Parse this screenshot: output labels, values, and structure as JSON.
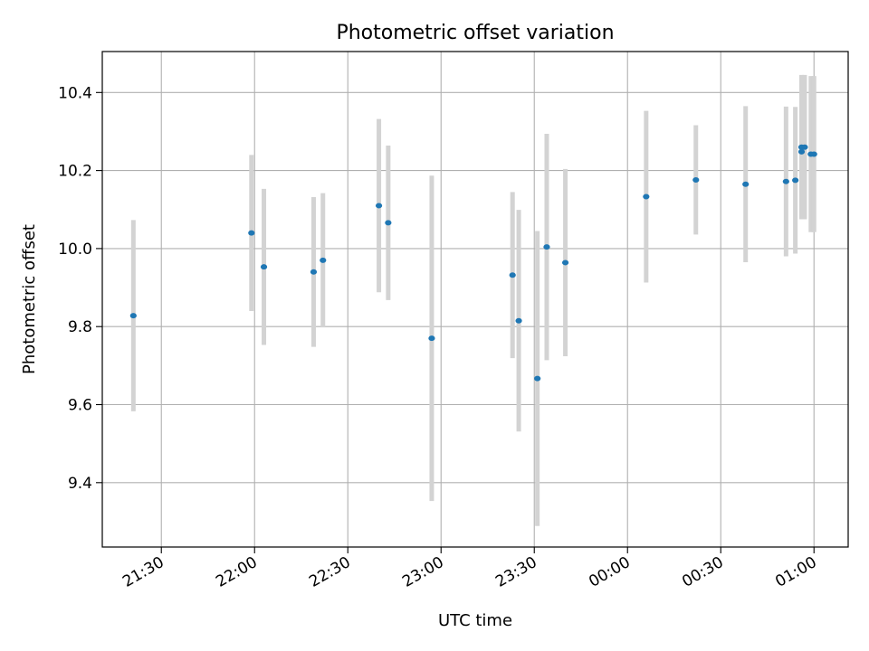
{
  "chart_data": {
    "type": "scatter",
    "title": "Photometric offset variation",
    "xlabel": "UTC time",
    "ylabel": "Photometric offset",
    "x_ticks": [
      "21:30",
      "22:00",
      "22:30",
      "23:00",
      "23:30",
      "00:00",
      "00:30",
      "01:00"
    ],
    "y_ticks": [
      "9.4",
      "9.6",
      "9.8",
      "10.0",
      "10.2",
      "10.4"
    ],
    "xlim": [
      "21:11",
      "01:11"
    ],
    "ylim": [
      9.235,
      10.505
    ],
    "grid": true,
    "marker_color": "#1f77b4",
    "errorbar_color": "#d3d3d3",
    "points": [
      {
        "time": "21:21",
        "y": 9.828,
        "err": 0.245
      },
      {
        "time": "21:59",
        "y": 10.04,
        "err": 0.2
      },
      {
        "time": "22:03",
        "y": 9.953,
        "err": 0.2
      },
      {
        "time": "22:19",
        "y": 9.94,
        "err": 0.192
      },
      {
        "time": "22:22",
        "y": 9.97,
        "err": 0.172
      },
      {
        "time": "22:40",
        "y": 10.11,
        "err": 0.222
      },
      {
        "time": "22:43",
        "y": 10.066,
        "err": 0.198
      },
      {
        "time": "22:57",
        "y": 9.77,
        "err": 0.417
      },
      {
        "time": "23:23",
        "y": 9.932,
        "err": 0.213
      },
      {
        "time": "23:25",
        "y": 9.815,
        "err": 0.284
      },
      {
        "time": "23:31",
        "y": 9.667,
        "err": 0.378
      },
      {
        "time": "23:34",
        "y": 10.004,
        "err": 0.29
      },
      {
        "time": "23:40",
        "y": 9.964,
        "err": 0.24
      },
      {
        "time": "00:06",
        "y": 10.133,
        "err": 0.22
      },
      {
        "time": "00:22",
        "y": 10.176,
        "err": 0.14
      },
      {
        "time": "00:38",
        "y": 10.165,
        "err": 0.2
      },
      {
        "time": "00:51",
        "y": 10.172,
        "err": 0.192
      },
      {
        "time": "00:54",
        "y": 10.175,
        "err": 0.188
      },
      {
        "time": "00:56",
        "y": 10.248,
        "err": 0.17
      },
      {
        "time": "00:56",
        "y": 10.26,
        "err": 0.185
      },
      {
        "time": "00:57",
        "y": 10.26,
        "err": 0.185
      },
      {
        "time": "00:59",
        "y": 10.242,
        "err": 0.2
      },
      {
        "time": "01:00",
        "y": 10.242,
        "err": 0.2
      }
    ]
  }
}
